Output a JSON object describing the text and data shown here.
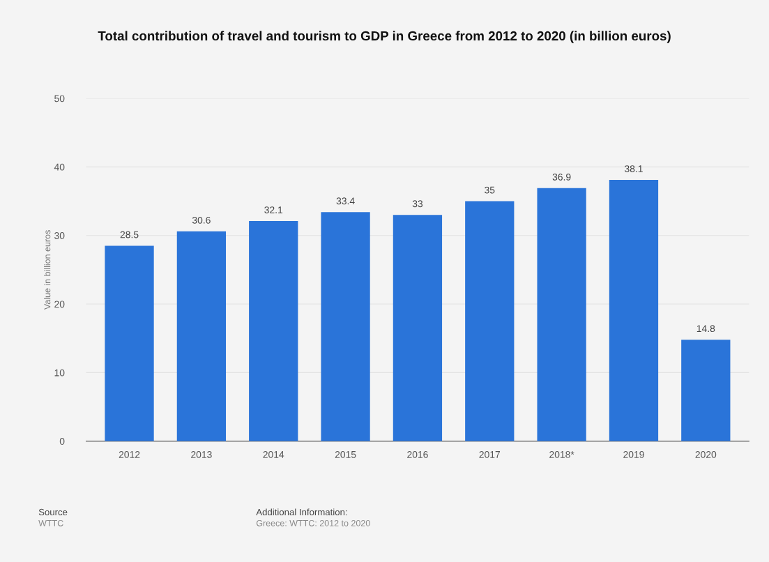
{
  "chart_data": {
    "type": "bar",
    "title": "Total contribution of travel and tourism to GDP in Greece from 2012 to 2020 (in billion euros)",
    "ylabel": "Value in billion euros",
    "categories": [
      "2012",
      "2013",
      "2014",
      "2015",
      "2016",
      "2017",
      "2018*",
      "2019",
      "2020"
    ],
    "values": [
      28.5,
      30.6,
      32.1,
      33.4,
      33,
      35,
      36.9,
      38.1,
      14.8
    ],
    "color": "#2a74d9",
    "ylim": [
      0,
      50
    ],
    "yticks": [
      0,
      10,
      20,
      30,
      40,
      50
    ],
    "grid": "y",
    "data_labels": true,
    "annotations": [
      "Source\nWTTC",
      "Additional Information:\nGreece: WTTC: 2012 to 2020"
    ]
  }
}
